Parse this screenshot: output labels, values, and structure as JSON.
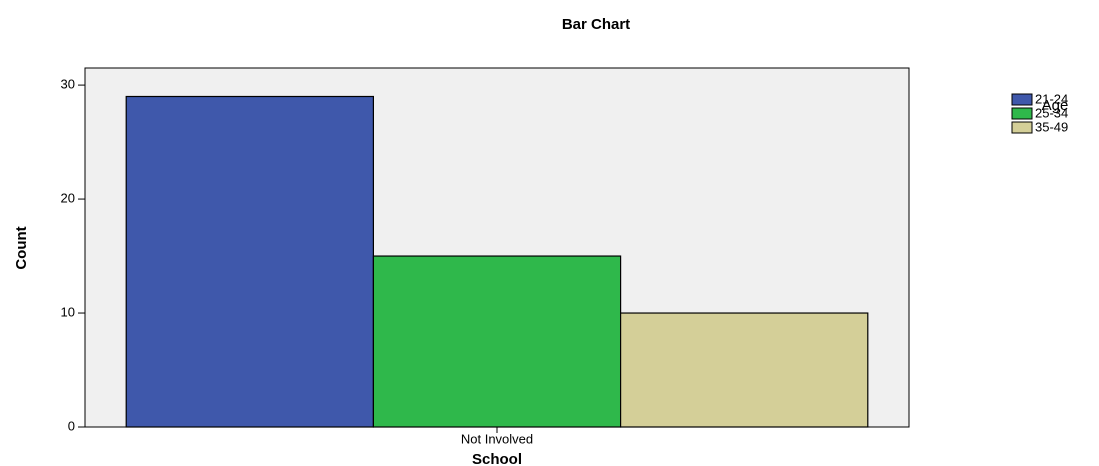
{
  "chart_data": {
    "type": "bar",
    "title": "Bar Chart",
    "x_label": "School",
    "y_label": "Count",
    "categories": [
      "Not Involved"
    ],
    "series": [
      {
        "name": "21-24",
        "color": "#3f58ab",
        "values": [
          29
        ]
      },
      {
        "name": "25-34",
        "color": "#2fb84b",
        "values": [
          15
        ]
      },
      {
        "name": "35-49",
        "color": "#d4cf98",
        "values": [
          10
        ]
      }
    ],
    "legend_title": "Age",
    "legend_position": "right",
    "ylim": [
      0,
      31.5
    ],
    "yticks": [
      0,
      10,
      20,
      30
    ],
    "grid": false
  }
}
